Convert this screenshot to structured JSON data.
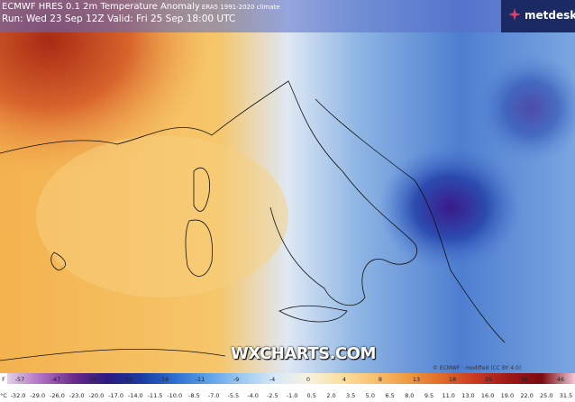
{
  "header": {
    "title": "ECMWF HRES 0.1 2m Temperature Anomaly",
    "climate": "ERA5 1991-2020 climate",
    "run": "Run: Wed 23 Sep 12Z Valid: Fri 25 Sep 18:00 UTC"
  },
  "logo": "metdesk",
  "watermark": "WXCHARTS.COM",
  "credit": "© ECMWF · modified (CC BY 4.0)",
  "legend": {
    "f_unit": "F",
    "f_labels": [
      "-57",
      "-47",
      "-32",
      "-22",
      "-16",
      "-11",
      "-9",
      "-4",
      "0",
      "4",
      "8",
      "13",
      "18",
      "25",
      "36",
      "46"
    ],
    "c_unit": "°C",
    "c_labels": [
      "-32.0",
      "-29.0",
      "-26.0",
      "-23.0",
      "-20.0",
      "-17.0",
      "-14.0",
      "-11.5",
      "-10.0",
      "-8.5",
      "-7.0",
      "-5.5",
      "-4.0",
      "-2.5",
      "-1.0",
      "0.5",
      "2.0",
      "3.5",
      "5.0",
      "6.5",
      "8.0",
      "9.5",
      "11.0",
      "13.0",
      "16.0",
      "19.0",
      "22.0",
      "25.0",
      "31.5"
    ]
  }
}
